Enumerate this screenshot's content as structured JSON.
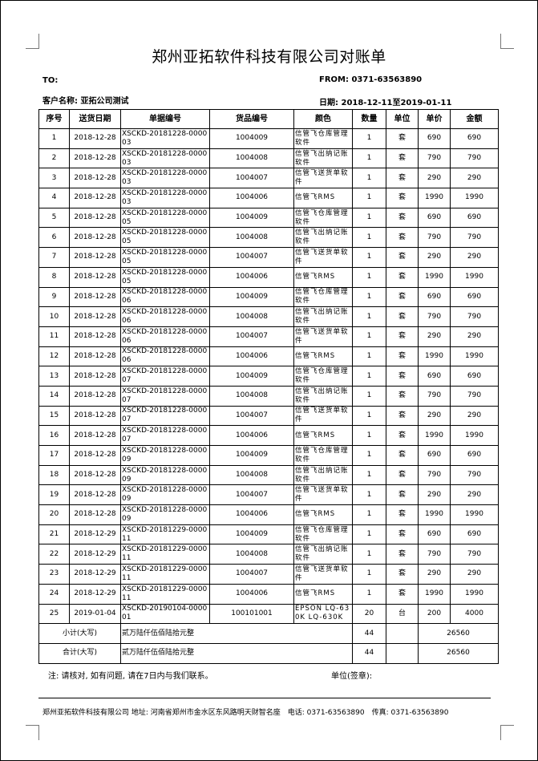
{
  "title": "郑州亚拓软件科技有限公司对账单",
  "to_label": "TO:",
  "from": "FROM: 0371-63563890",
  "customer": "客户名称: 亚拓公司测试",
  "date_range": "日期: 2018-12-11至2019-01-11",
  "columns": [
    "序号",
    "送货日期",
    "单据编号",
    "货品编号",
    "颜色",
    "数量",
    "单位",
    "单价",
    "金额"
  ],
  "rows": [
    [
      "1",
      "2018-12-28",
      "XSCKD-20181228-000003",
      "1004009",
      "信管飞仓库管理软件",
      "1",
      "套",
      "690",
      "690"
    ],
    [
      "2",
      "2018-12-28",
      "XSCKD-20181228-000003",
      "1004008",
      "信管飞出纳记账软件",
      "1",
      "套",
      "790",
      "790"
    ],
    [
      "3",
      "2018-12-28",
      "XSCKD-20181228-000003",
      "1004007",
      "信管飞送货单软件",
      "1",
      "套",
      "290",
      "290"
    ],
    [
      "4",
      "2018-12-28",
      "XSCKD-20181228-000003",
      "1004006",
      "信管飞RMS",
      "1",
      "套",
      "1990",
      "1990"
    ],
    [
      "5",
      "2018-12-28",
      "XSCKD-20181228-000005",
      "1004009",
      "信管飞仓库管理软件",
      "1",
      "套",
      "690",
      "690"
    ],
    [
      "6",
      "2018-12-28",
      "XSCKD-20181228-000005",
      "1004008",
      "信管飞出纳记账软件",
      "1",
      "套",
      "790",
      "790"
    ],
    [
      "7",
      "2018-12-28",
      "XSCKD-20181228-000005",
      "1004007",
      "信管飞送货单软件",
      "1",
      "套",
      "290",
      "290"
    ],
    [
      "8",
      "2018-12-28",
      "XSCKD-20181228-000005",
      "1004006",
      "信管飞RMS",
      "1",
      "套",
      "1990",
      "1990"
    ],
    [
      "9",
      "2018-12-28",
      "XSCKD-20181228-000006",
      "1004009",
      "信管飞仓库管理软件",
      "1",
      "套",
      "690",
      "690"
    ],
    [
      "10",
      "2018-12-28",
      "XSCKD-20181228-000006",
      "1004008",
      "信管飞出纳记账软件",
      "1",
      "套",
      "790",
      "790"
    ],
    [
      "11",
      "2018-12-28",
      "XSCKD-20181228-000006",
      "1004007",
      "信管飞送货单软件",
      "1",
      "套",
      "290",
      "290"
    ],
    [
      "12",
      "2018-12-28",
      "XSCKD-20181228-000006",
      "1004006",
      "信管飞RMS",
      "1",
      "套",
      "1990",
      "1990"
    ],
    [
      "13",
      "2018-12-28",
      "XSCKD-20181228-000007",
      "1004009",
      "信管飞仓库管理软件",
      "1",
      "套",
      "690",
      "690"
    ],
    [
      "14",
      "2018-12-28",
      "XSCKD-20181228-000007",
      "1004008",
      "信管飞出纳记账软件",
      "1",
      "套",
      "790",
      "790"
    ],
    [
      "15",
      "2018-12-28",
      "XSCKD-20181228-000007",
      "1004007",
      "信管飞送货单软件",
      "1",
      "套",
      "290",
      "290"
    ],
    [
      "16",
      "2018-12-28",
      "XSCKD-20181228-000007",
      "1004006",
      "信管飞RMS",
      "1",
      "套",
      "1990",
      "1990"
    ],
    [
      "17",
      "2018-12-28",
      "XSCKD-20181228-000009",
      "1004009",
      "信管飞仓库管理软件",
      "1",
      "套",
      "690",
      "690"
    ],
    [
      "18",
      "2018-12-28",
      "XSCKD-20181228-000009",
      "1004008",
      "信管飞出纳记账软件",
      "1",
      "套",
      "790",
      "790"
    ],
    [
      "19",
      "2018-12-28",
      "XSCKD-20181228-000009",
      "1004007",
      "信管飞送货单软件",
      "1",
      "套",
      "290",
      "290"
    ],
    [
      "20",
      "2018-12-28",
      "XSCKD-20181228-000009",
      "1004006",
      "信管飞RMS",
      "1",
      "套",
      "1990",
      "1990"
    ],
    [
      "21",
      "2018-12-29",
      "XSCKD-20181229-000011",
      "1004009",
      "信管飞仓库管理软件",
      "1",
      "套",
      "690",
      "690"
    ],
    [
      "22",
      "2018-12-29",
      "XSCKD-20181229-000011",
      "1004008",
      "信管飞出纳记账软件",
      "1",
      "套",
      "790",
      "790"
    ],
    [
      "23",
      "2018-12-29",
      "XSCKD-20181229-000011",
      "1004007",
      "信管飞送货单软件",
      "1",
      "套",
      "290",
      "290"
    ],
    [
      "24",
      "2018-12-29",
      "XSCKD-20181229-000011",
      "1004006",
      "信管飞RMS",
      "1",
      "套",
      "1990",
      "1990"
    ],
    [
      "25",
      "2019-01-04",
      "XSCKD-20190104-000001",
      "100101001",
      "EPSON LQ-630K LQ-630K",
      "20",
      "台",
      "200",
      "4000"
    ]
  ],
  "subtotal": {
    "label": "小计(大写)",
    "words": "贰万陆仟伍佰陆拾元整",
    "qty": "44",
    "amount": "26560"
  },
  "total": {
    "label": "合计(大写)",
    "words": "贰万陆仟伍佰陆拾元整",
    "qty": "44",
    "amount": "26560"
  },
  "note": "注: 请核对, 如有问题, 请在7日内与我们联系。",
  "sign": "单位(签章):",
  "footer": "郑州亚拓软件科技有限公司 地址: 河南省郑州市金水区东风路明天财智名座　电话: 0371-63563890　传真: 0371-63563890"
}
